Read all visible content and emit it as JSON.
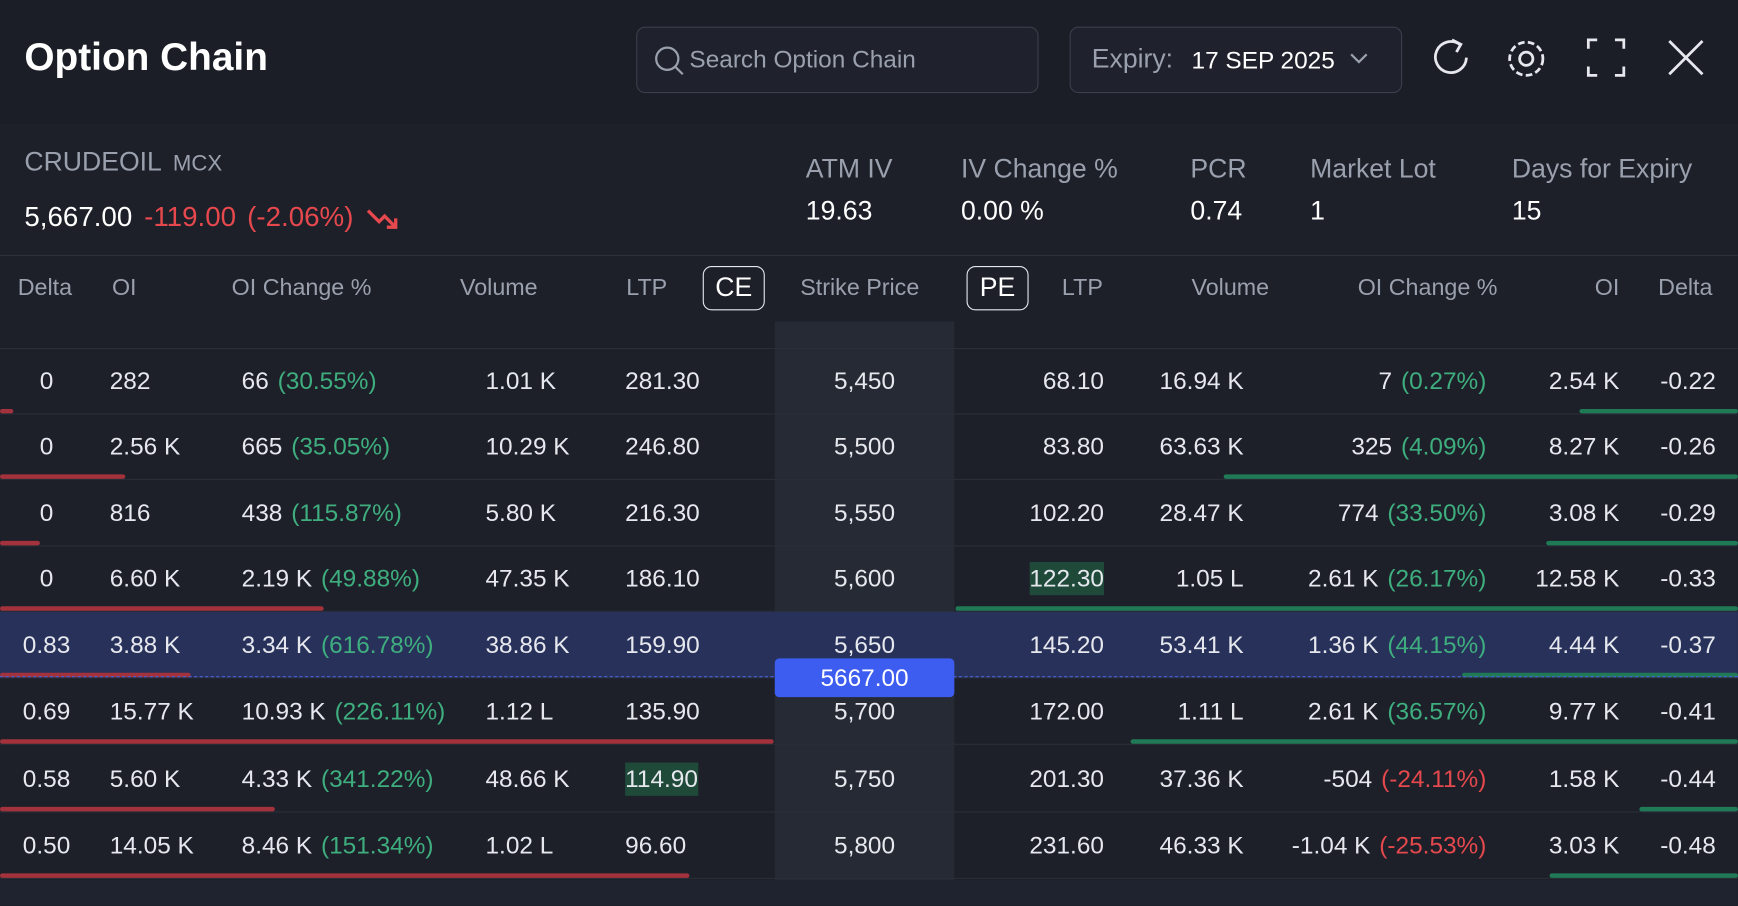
{
  "header": {
    "title": "Option Chain",
    "search_placeholder": "Search Option Chain",
    "expiry_label": "Expiry:",
    "expiry": "17 SEP 2025"
  },
  "instrument": {
    "symbol": "CRUDEOIL",
    "exchange": "MCX",
    "price": "5,667.00",
    "change": "-119.00",
    "change_pct": "(-2.06%)"
  },
  "stats": [
    {
      "label": "ATM IV",
      "value": "19.63"
    },
    {
      "label": "IV Change %",
      "value": "0.00 %"
    },
    {
      "label": "PCR",
      "value": "0.74"
    },
    {
      "label": "Market Lot",
      "value": "1"
    },
    {
      "label": "Days for Expiry",
      "value": "15"
    }
  ],
  "columns": {
    "call": [
      "Delta",
      "OI",
      "OI Change %",
      "Volume",
      "LTP"
    ],
    "ce": "CE",
    "strike": "Strike Price",
    "pe": "PE",
    "put": [
      "LTP",
      "Volume",
      "OI Change %",
      "OI",
      "Delta"
    ]
  },
  "spot_marker": "5667.00",
  "rows": [
    {
      "call": {
        "delta": "0",
        "oi": "282",
        "oi_change": "66",
        "oi_change_pct": "(30.55%)",
        "volume": "1.01 K",
        "ltp": "281.30"
      },
      "strike": "5,450",
      "put": {
        "ltp": "68.10",
        "volume": "16.94 K",
        "oi_change": "7",
        "oi_change_pct": "(0.27%)",
        "oi": "2.54 K",
        "delta": "-0.22"
      }
    },
    {
      "call": {
        "delta": "0",
        "oi": "2.56 K",
        "oi_change": "665",
        "oi_change_pct": "(35.05%)",
        "volume": "10.29 K",
        "ltp": "246.80"
      },
      "strike": "5,500",
      "put": {
        "ltp": "83.80",
        "volume": "63.63 K",
        "oi_change": "325",
        "oi_change_pct": "(4.09%)",
        "oi": "8.27 K",
        "delta": "-0.26"
      }
    },
    {
      "call": {
        "delta": "0",
        "oi": "816",
        "oi_change": "438",
        "oi_change_pct": "(115.87%)",
        "volume": "5.80 K",
        "ltp": "216.30"
      },
      "strike": "5,550",
      "put": {
        "ltp": "102.20",
        "volume": "28.47 K",
        "oi_change": "774",
        "oi_change_pct": "(33.50%)",
        "oi": "3.08 K",
        "delta": "-0.29"
      }
    },
    {
      "call": {
        "delta": "0",
        "oi": "6.60 K",
        "oi_change": "2.19 K",
        "oi_change_pct": "(49.88%)",
        "volume": "47.35 K",
        "ltp": "186.10"
      },
      "strike": "5,600",
      "put": {
        "ltp": "122.30",
        "volume": "1.05 L",
        "oi_change": "2.61 K",
        "oi_change_pct": "(26.17%)",
        "oi": "12.58 K",
        "delta": "-0.33"
      }
    },
    {
      "call": {
        "delta": "0.83",
        "oi": "3.88 K",
        "oi_change": "3.34 K",
        "oi_change_pct": "(616.78%)",
        "volume": "38.86 K",
        "ltp": "159.90"
      },
      "strike": "5,650",
      "put": {
        "ltp": "145.20",
        "volume": "53.41 K",
        "oi_change": "1.36 K",
        "oi_change_pct": "(44.15%)",
        "oi": "4.44 K",
        "delta": "-0.37"
      }
    },
    {
      "call": {
        "delta": "0.69",
        "oi": "15.77 K",
        "oi_change": "10.93 K",
        "oi_change_pct": "(226.11%)",
        "volume": "1.12 L",
        "ltp": "135.90"
      },
      "strike": "5,700",
      "put": {
        "ltp": "172.00",
        "volume": "1.11 L",
        "oi_change": "2.61 K",
        "oi_change_pct": "(36.57%)",
        "oi": "9.77 K",
        "delta": "-0.41"
      }
    },
    {
      "call": {
        "delta": "0.58",
        "oi": "5.60 K",
        "oi_change": "4.33 K",
        "oi_change_pct": "(341.22%)",
        "volume": "48.66 K",
        "ltp": "114.90"
      },
      "strike": "5,750",
      "put": {
        "ltp": "201.30",
        "volume": "37.36 K",
        "oi_change": "-504",
        "oi_change_pct": "(-24.11%)",
        "oi": "1.58 K",
        "delta": "-0.44"
      }
    },
    {
      "call": {
        "delta": "0.50",
        "oi": "14.05 K",
        "oi_change": "8.46 K",
        "oi_change_pct": "(151.34%)",
        "volume": "1.02 L",
        "ltp": "96.60"
      },
      "strike": "5,800",
      "put": {
        "ltp": "231.60",
        "volume": "46.33 K",
        "oi_change": "-1.04 K",
        "oi_change_pct": "(-25.53%)",
        "oi": "3.03 K",
        "delta": "-0.48"
      }
    }
  ]
}
